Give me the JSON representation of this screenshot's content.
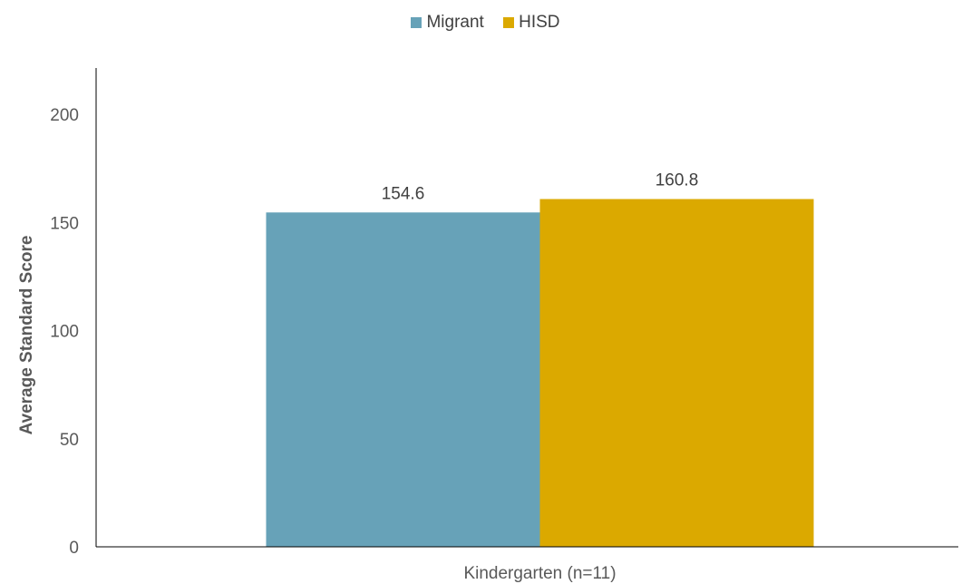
{
  "chart_data": {
    "type": "bar",
    "categories": [
      "Kindergarten (n=11)"
    ],
    "series": [
      {
        "name": "Migrant",
        "values": [
          154.6
        ],
        "color": "#67a2b8"
      },
      {
        "name": "HISD",
        "values": [
          160.8
        ],
        "color": "#dba900"
      }
    ],
    "data_labels": [
      "154.6",
      "160.8"
    ],
    "ylabel": "Average Standard Score",
    "ylim": [
      0,
      200
    ],
    "yticks": [
      0,
      50,
      100,
      150,
      200
    ],
    "grid": false,
    "legend": "top-center"
  }
}
